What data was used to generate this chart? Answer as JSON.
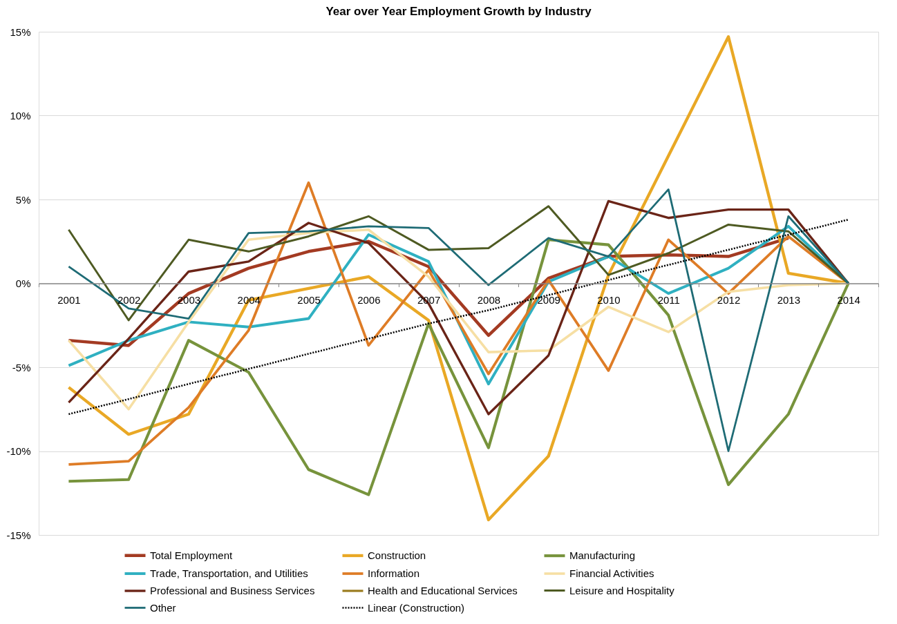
{
  "chart_data": {
    "type": "line",
    "title": "Year over Year Employment Growth by Industry",
    "categories": [
      "2001",
      "2002",
      "2003",
      "2004",
      "2005",
      "2006",
      "2007",
      "2008",
      "2009",
      "2010",
      "2011",
      "2012",
      "2013",
      "2014"
    ],
    "ylim": [
      -15,
      15
    ],
    "yticks": [
      {
        "value": -15,
        "label": "-15%"
      },
      {
        "value": -10,
        "label": "-10%"
      },
      {
        "value": -5,
        "label": "-5%"
      },
      {
        "value": 0,
        "label": "0%"
      },
      {
        "value": 5,
        "label": "5%"
      },
      {
        "value": 10,
        "label": "10%"
      },
      {
        "value": 15,
        "label": "15%"
      }
    ],
    "grid": "y",
    "legend": "bottom",
    "line_style": "solid",
    "series": [
      {
        "name": "Total Employment",
        "color": "#a33a22",
        "values": [
          -3.4,
          -3.7,
          -0.6,
          0.9,
          1.9,
          2.5,
          1.0,
          -3.1,
          0.3,
          1.6,
          1.7,
          1.6,
          2.7,
          null
        ]
      },
      {
        "name": "Construction",
        "color": "#e9a825",
        "values": [
          -6.2,
          -9.0,
          -7.8,
          -1.0,
          -0.3,
          0.4,
          -2.2,
          -14.1,
          -10.3,
          0.5,
          7.6,
          14.7,
          0.6,
          0.0
        ]
      },
      {
        "name": "Manufacturing",
        "color": "#77933c",
        "values": [
          -11.8,
          -11.7,
          -3.4,
          -5.3,
          -11.1,
          -12.6,
          -2.4,
          -9.8,
          2.6,
          2.3,
          -1.9,
          -12.0,
          -7.8,
          0.0
        ]
      },
      {
        "name": "Trade, Transportation, and Utilities",
        "color": "#2fb0c1",
        "values": [
          -4.9,
          -3.4,
          -2.3,
          -2.6,
          -2.1,
          2.9,
          1.3,
          -6.0,
          0.1,
          1.6,
          -0.6,
          0.9,
          3.4,
          0.0
        ]
      },
      {
        "name": "Information",
        "color": "#de7c26",
        "values": [
          -10.8,
          -10.6,
          -7.4,
          -2.8,
          6.0,
          -3.7,
          0.8,
          -5.4,
          0.2,
          -5.2,
          2.6,
          -0.6,
          2.8,
          0.0
        ]
      },
      {
        "name": "Financial Activities",
        "color": "#f6dfa4",
        "values": [
          -3.4,
          -7.5,
          -2.3,
          2.6,
          3.0,
          3.2,
          0.4,
          -4.1,
          -4.0,
          -1.4,
          -2.9,
          -0.5,
          -0.1,
          0.0
        ]
      },
      {
        "name": "Professional and Business Services",
        "color": "#6a2417",
        "values": [
          -7.1,
          -3.3,
          0.7,
          1.3,
          3.6,
          2.4,
          -1.2,
          -7.8,
          -4.3,
          4.9,
          3.9,
          4.4,
          4.4,
          0.0
        ]
      },
      {
        "name": "Health and Educational Services",
        "color": "#9a7b1e",
        "values": [
          null,
          null,
          null,
          null,
          null,
          null,
          null,
          null,
          null,
          null,
          null,
          null,
          null,
          null
        ]
      },
      {
        "name": "Leisure and Hospitality",
        "color": "#4e5a22",
        "values": [
          3.2,
          -2.2,
          2.6,
          1.9,
          2.8,
          4.0,
          2.0,
          2.1,
          4.6,
          0.5,
          1.8,
          3.5,
          3.1,
          0.0
        ]
      },
      {
        "name": "Other",
        "color": "#1e6b75",
        "values": [
          1.0,
          -1.5,
          -2.1,
          3.0,
          3.1,
          3.4,
          3.3,
          -0.1,
          2.7,
          1.6,
          5.6,
          -10.0,
          4.0,
          0.0
        ]
      },
      {
        "name": "Linear (Construction)",
        "type": "line",
        "color": "#000000",
        "line_style": "dotted",
        "values": [
          -7.8,
          -6.9,
          -6.0,
          -5.1,
          -4.2,
          -3.3,
          -2.4,
          -1.6,
          -0.7,
          0.2,
          1.1,
          2.0,
          2.9,
          3.8
        ]
      }
    ]
  }
}
